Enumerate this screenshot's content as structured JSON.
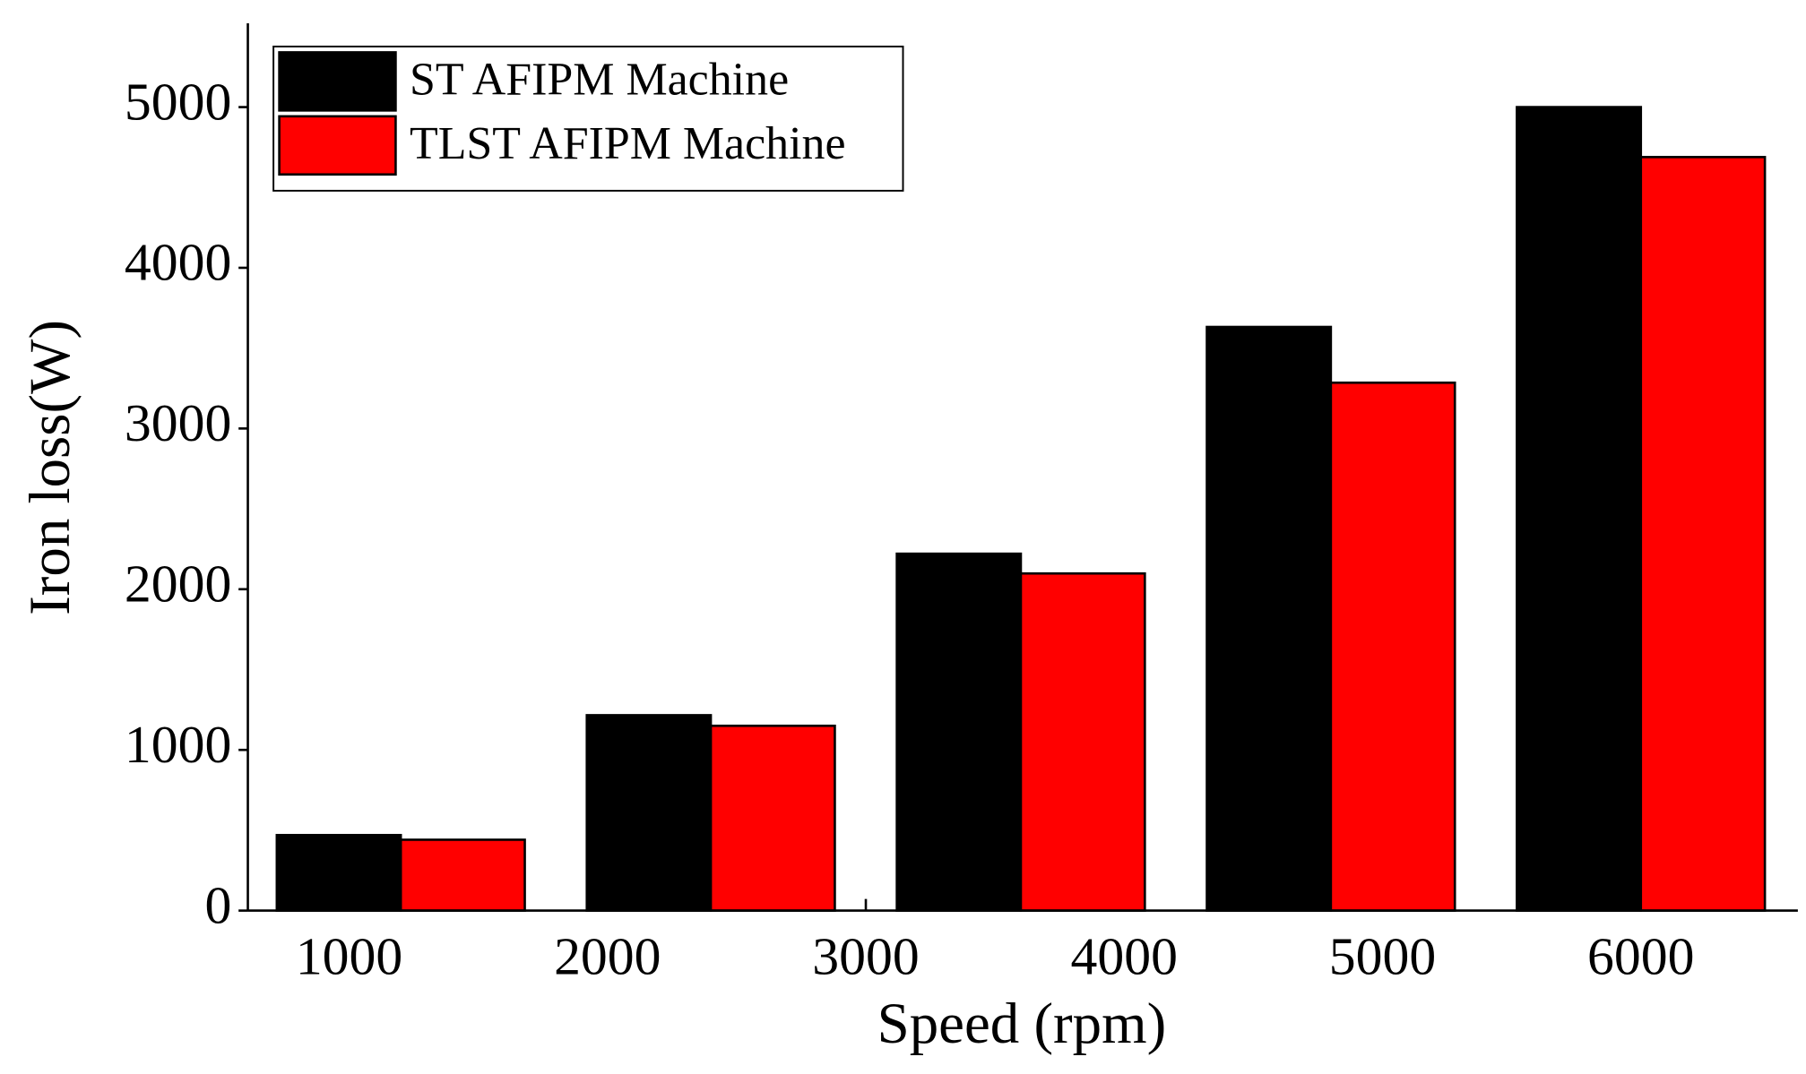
{
  "chart_data": {
    "type": "bar",
    "x_label": "Speed (rpm)",
    "y_label": "Iron loss(W)",
    "x": [
      1200,
      2400,
      3600,
      4800,
      6000
    ],
    "series": [
      {
        "name": "ST AFIPM Machine",
        "color": "#000000",
        "values": [
          470,
          1216,
          2221,
          3632,
          5000
        ]
      },
      {
        "name": "TLST AFIPM Machine",
        "color": "#ff0000",
        "values": [
          441,
          1150,
          2098,
          3285,
          4689
        ]
      }
    ],
    "xlim": [
      608,
      6495
    ],
    "xticks": [
      1000,
      2000,
      3000,
      4000,
      5000,
      6000
    ],
    "ylim": [
      0,
      5500
    ],
    "yticks": [
      0,
      1000,
      2000,
      3000,
      4000,
      5000
    ],
    "legend": "upper left"
  }
}
